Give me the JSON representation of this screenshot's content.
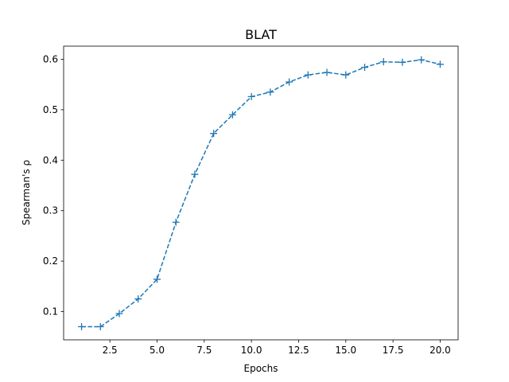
{
  "chart_data": {
    "type": "line",
    "title": "BLAT",
    "xlabel": "Epochs",
    "ylabel": "Spearman's ρ",
    "xlim": [
      0.05,
      20.95
    ],
    "ylim": [
      0.044,
      0.626
    ],
    "xticks": [
      2.5,
      5.0,
      7.5,
      10.0,
      12.5,
      15.0,
      17.5,
      20.0
    ],
    "xtick_labels": [
      "2.5",
      "5.0",
      "7.5",
      "10.0",
      "12.5",
      "15.0",
      "17.5",
      "20.0"
    ],
    "yticks": [
      0.1,
      0.2,
      0.3,
      0.4,
      0.5,
      0.6
    ],
    "ytick_labels": [
      "0.1",
      "0.2",
      "0.3",
      "0.4",
      "0.5",
      "0.6"
    ],
    "grid": false,
    "series": [
      {
        "color": "#1f77b4",
        "line_style": "dashed",
        "marker": "plus",
        "x": [
          1,
          2,
          3,
          4,
          5,
          6,
          7,
          8,
          9,
          10,
          11,
          12,
          13,
          14,
          15,
          16,
          17,
          18,
          19,
          20
        ],
        "y": [
          0.07,
          0.07,
          0.096,
          0.125,
          0.164,
          0.277,
          0.372,
          0.453,
          0.49,
          0.526,
          0.535,
          0.555,
          0.569,
          0.574,
          0.569,
          0.584,
          0.595,
          0.594,
          0.599,
          0.59
        ]
      }
    ]
  }
}
